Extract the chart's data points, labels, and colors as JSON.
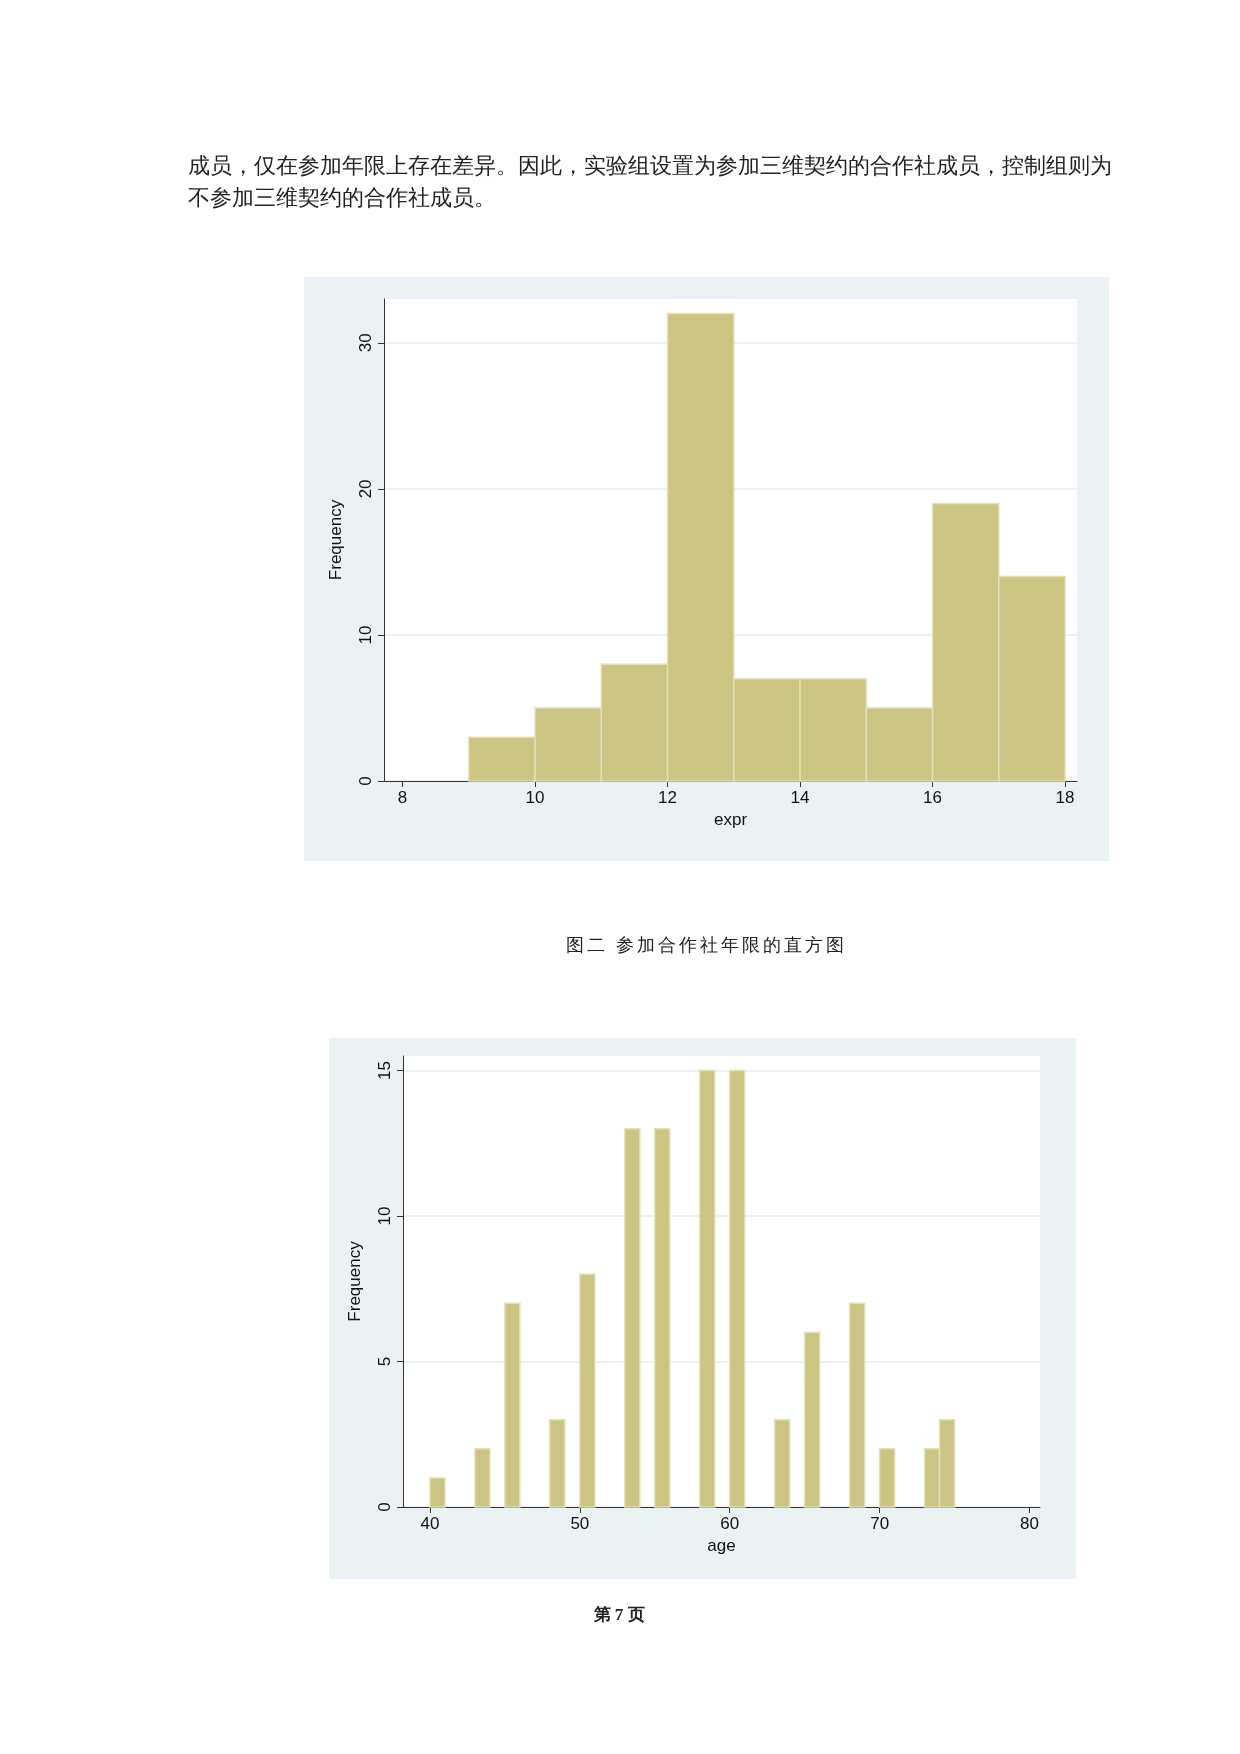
{
  "chart_data": [
    {
      "type": "histogram",
      "xlabel": "expr",
      "ylabel": "Frequency",
      "color": "#ccc482",
      "bins": [
        9,
        10,
        11,
        12,
        13,
        14,
        15,
        16,
        17,
        18
      ],
      "values": [
        3,
        5,
        8,
        32,
        7,
        7,
        5,
        19,
        14
      ],
      "xlim": [
        7.72,
        18.18
      ],
      "xticks": [
        8,
        10,
        12,
        14,
        16,
        18
      ],
      "ylim": [
        0,
        33
      ],
      "yticks": [
        0,
        10,
        20,
        30
      ],
      "grid": "y",
      "annotations": [
        "成员，仅在参加年限上存在差异。因此，实验组设置为参加三维契约的合作社成员，控制组则为不参加三维契约的合作社成员。",
        "图二  参加合作社年限的直方图"
      ]
    },
    {
      "type": "histogram",
      "xlabel": "age",
      "ylabel": "Frequency",
      "color": "#ccc482",
      "bins": [
        40,
        41,
        42,
        43,
        44,
        45,
        46,
        47,
        48,
        49,
        50,
        51,
        52,
        53,
        54,
        55,
        56,
        57,
        58,
        59,
        60,
        61,
        62,
        63,
        64,
        65,
        66,
        67,
        68,
        69,
        70,
        71,
        72,
        73,
        74,
        75
      ],
      "values": [
        1,
        0,
        0,
        2,
        0,
        7,
        0,
        0,
        3,
        0,
        8,
        0,
        0,
        13,
        0,
        13,
        0,
        0,
        15,
        0,
        15,
        0,
        0,
        3,
        0,
        6,
        0,
        0,
        7,
        0,
        2,
        0,
        0,
        2,
        3
      ],
      "xlim": [
        38.2,
        80.7
      ],
      "xticks": [
        40,
        50,
        60,
        70,
        80
      ],
      "ylim": [
        0,
        15.5
      ],
      "yticks": [
        0,
        5,
        10,
        15
      ],
      "grid": "y",
      "annotations": [
        "第 7 页"
      ]
    }
  ]
}
